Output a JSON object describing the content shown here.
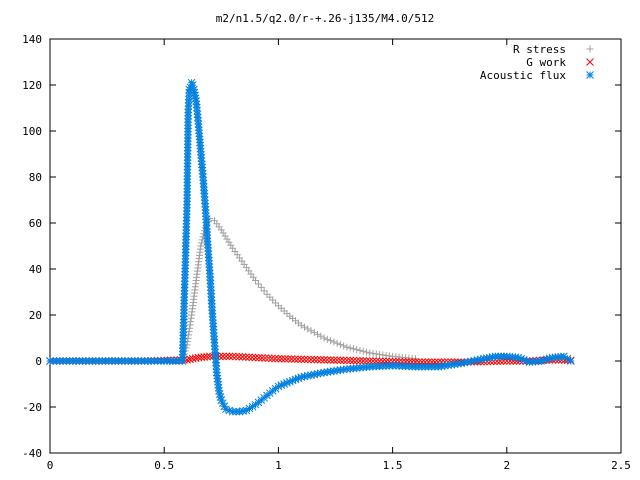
{
  "chart_data": {
    "type": "scatter",
    "title": "m2/n1.5/q2.0/r-+.26-j135/M4.0/512",
    "xlabel": "",
    "ylabel": "",
    "xlim": [
      0,
      2.5
    ],
    "ylim": [
      -40,
      140
    ],
    "x_ticks": [
      0,
      0.5,
      1,
      1.5,
      2,
      2.5
    ],
    "x_tick_labels": [
      "0",
      "0.5",
      "1",
      "1.5",
      "2",
      "2.5"
    ],
    "y_ticks": [
      -40,
      -20,
      0,
      20,
      40,
      60,
      80,
      100,
      120,
      140
    ],
    "y_tick_labels": [
      "-40",
      "-20",
      "0",
      "20",
      "40",
      "60",
      "80",
      "100",
      "120",
      "140"
    ],
    "grid": false,
    "legend_position": "top-right",
    "series": [
      {
        "name": "R stress",
        "marker": "plus",
        "color": "#a0a0a0",
        "x": [
          0,
          0.1,
          0.2,
          0.3,
          0.4,
          0.5,
          0.58,
          0.6,
          0.62,
          0.64,
          0.66,
          0.68,
          0.7,
          0.72,
          0.75,
          0.8,
          0.85,
          0.9,
          0.95,
          1.0,
          1.05,
          1.1,
          1.2,
          1.3,
          1.4,
          1.5,
          1.6
        ],
        "y": [
          0,
          0,
          0,
          0,
          0,
          0,
          0.5,
          7,
          20,
          35,
          50,
          58,
          62,
          61,
          57,
          49,
          42,
          35,
          29,
          24,
          19.5,
          15.5,
          10,
          6,
          3.5,
          2,
          1
        ]
      },
      {
        "name": "G work",
        "marker": "cross",
        "color": "#ff0000",
        "x": [
          0,
          0.2,
          0.4,
          0.6,
          0.65,
          0.7,
          0.8,
          0.9,
          1.0,
          1.2,
          1.4,
          1.6,
          1.8,
          2.0,
          2.1,
          2.2,
          2.28
        ],
        "y": [
          0,
          0,
          0,
          0.5,
          1.5,
          2,
          2,
          1.5,
          1,
          0.5,
          0,
          -0.5,
          -0.5,
          0,
          0,
          0.5,
          0.3
        ]
      },
      {
        "name": "Acoustic flux",
        "marker": "star",
        "color": "#0080e0",
        "x": [
          0,
          0.1,
          0.2,
          0.3,
          0.4,
          0.5,
          0.55,
          0.58,
          0.6,
          0.605,
          0.61,
          0.615,
          0.62,
          0.625,
          0.63,
          0.64,
          0.65,
          0.66,
          0.67,
          0.68,
          0.69,
          0.7,
          0.71,
          0.72,
          0.73,
          0.74,
          0.75,
          0.77,
          0.8,
          0.83,
          0.86,
          0.9,
          0.95,
          1.0,
          1.05,
          1.1,
          1.2,
          1.3,
          1.4,
          1.5,
          1.6,
          1.7,
          1.8,
          1.9,
          1.95,
          2.0,
          2.05,
          2.1,
          2.15,
          2.2,
          2.25,
          2.28
        ],
        "y": [
          0,
          0,
          0,
          0,
          0,
          0,
          0,
          0,
          68,
          108,
          118,
          119,
          121,
          120,
          118,
          113,
          103,
          91,
          80,
          67,
          52,
          38,
          22,
          8,
          -5,
          -13,
          -17,
          -21,
          -22,
          -22,
          -21.5,
          -19,
          -15,
          -11,
          -9,
          -7,
          -5,
          -3.5,
          -2.5,
          -2,
          -2.5,
          -2.5,
          -1,
          1,
          2,
          2,
          1.5,
          -0.5,
          0,
          1.5,
          2,
          0
        ]
      }
    ]
  }
}
